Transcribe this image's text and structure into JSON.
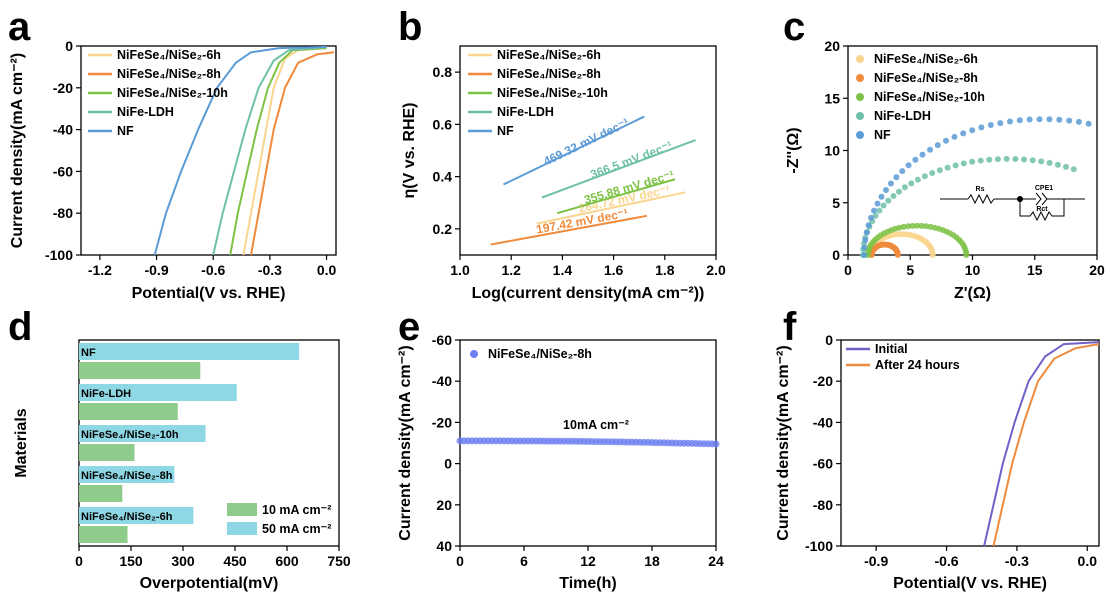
{
  "colors": {
    "6h": "#F9D58E",
    "8h": "#F08A3C",
    "10h": "#7DC244",
    "ldh": "#6FC0A8",
    "nf": "#5B9BD5",
    "initial": "#6E62C8",
    "after": "#F08A3C",
    "bar10": "#8FCB8A",
    "bar50": "#8ED8E6",
    "stab": "#6C7FF0"
  },
  "panels": {
    "a": "a",
    "b": "b",
    "c": "c",
    "d": "d",
    "e": "e",
    "f": "f"
  },
  "chart_data": [
    {
      "panel": "a",
      "type": "line",
      "xlabel": "Potential(V vs. RHE)",
      "ylabel": "Current density(mA cm⁻²)",
      "xlim": [
        -1.3,
        0.05
      ],
      "ylim": [
        -100,
        0
      ],
      "xticks": [
        "-1.2",
        "-0.9",
        "-0.6",
        "-0.3",
        "0.0"
      ],
      "yticks": [
        "0",
        "-20",
        "-40",
        "-60",
        "-80",
        "-100"
      ],
      "legend_position": "top-left",
      "series": [
        {
          "name": "NiFeSe₄/NiSe₂-6h",
          "key": "6h",
          "points": [
            [
              -0.44,
              -100
            ],
            [
              -0.4,
              -80
            ],
            [
              -0.36,
              -60
            ],
            [
              -0.32,
              -40
            ],
            [
              -0.28,
              -20
            ],
            [
              -0.22,
              -6
            ],
            [
              -0.15,
              -2
            ],
            [
              0.0,
              -1
            ]
          ]
        },
        {
          "name": "NiFeSe₄/NiSe₂-8h",
          "key": "8h",
          "points": [
            [
              -0.4,
              -100
            ],
            [
              -0.36,
              -80
            ],
            [
              -0.32,
              -60
            ],
            [
              -0.28,
              -40
            ],
            [
              -0.22,
              -20
            ],
            [
              -0.15,
              -8
            ],
            [
              -0.05,
              -4
            ],
            [
              0.04,
              -3
            ]
          ]
        },
        {
          "name": "NiFeSe₄/NiSe₂-10h",
          "key": "10h",
          "points": [
            [
              -0.51,
              -100
            ],
            [
              -0.47,
              -80
            ],
            [
              -0.42,
              -60
            ],
            [
              -0.37,
              -40
            ],
            [
              -0.31,
              -20
            ],
            [
              -0.25,
              -8
            ],
            [
              -0.18,
              -2
            ],
            [
              0.0,
              -1
            ]
          ]
        },
        {
          "name": "NiFe-LDH",
          "key": "ldh",
          "points": [
            [
              -0.6,
              -100
            ],
            [
              -0.55,
              -80
            ],
            [
              -0.49,
              -60
            ],
            [
              -0.43,
              -40
            ],
            [
              -0.36,
              -20
            ],
            [
              -0.28,
              -7
            ],
            [
              -0.2,
              -2
            ],
            [
              0.0,
              -0.5
            ]
          ]
        },
        {
          "name": "NF",
          "key": "nf",
          "points": [
            [
              -0.91,
              -100
            ],
            [
              -0.85,
              -80
            ],
            [
              -0.77,
              -60
            ],
            [
              -0.68,
              -40
            ],
            [
              -0.58,
              -20
            ],
            [
              -0.48,
              -8
            ],
            [
              -0.4,
              -3
            ],
            [
              -0.25,
              -1
            ],
            [
              0.0,
              -0.5
            ]
          ]
        }
      ]
    },
    {
      "panel": "b",
      "type": "line",
      "xlabel": "Log(current density(mA cm⁻²))",
      "ylabel": "η(V vs. RHE)",
      "xlim": [
        1.0,
        2.0
      ],
      "ylim": [
        0.1,
        0.9
      ],
      "xticks": [
        "1.0",
        "1.2",
        "1.4",
        "1.6",
        "1.8",
        "2.0"
      ],
      "yticks": [
        "0.2",
        "0.4",
        "0.6",
        "0.8"
      ],
      "legend_position": "top-left",
      "series": [
        {
          "name": "NiFeSe₄/NiSe₂-6h",
          "key": "6h",
          "points": [
            [
              1.3,
              0.22
            ],
            [
              1.88,
              0.34
            ]
          ],
          "slope_label": "264.72 mV dec⁻¹"
        },
        {
          "name": "NiFeSe₄/NiSe₂-8h",
          "key": "8h",
          "points": [
            [
              1.12,
              0.14
            ],
            [
              1.73,
              0.25
            ]
          ],
          "slope_label": "197.42 mV dec⁻¹"
        },
        {
          "name": "NiFeSe₄/NiSe₂-10h",
          "key": "10h",
          "points": [
            [
              1.38,
              0.26
            ],
            [
              1.84,
              0.39
            ]
          ],
          "slope_label": "355.88 mV dec⁻¹"
        },
        {
          "name": "NiFe-LDH",
          "key": "ldh",
          "points": [
            [
              1.32,
              0.32
            ],
            [
              1.92,
              0.54
            ]
          ],
          "slope_label": "366.5 mV dec⁻¹"
        },
        {
          "name": "NF",
          "key": "nf",
          "points": [
            [
              1.17,
              0.37
            ],
            [
              1.72,
              0.63
            ]
          ],
          "slope_label": "469.32 mV dec⁻¹"
        }
      ]
    },
    {
      "panel": "c",
      "type": "scatter",
      "xlabel": "Z'(Ω)",
      "ylabel": "-Z''(Ω)",
      "xlim": [
        0,
        20
      ],
      "ylim": [
        0,
        20
      ],
      "xticks": [
        "0",
        "5",
        "10",
        "15",
        "20"
      ],
      "yticks": [
        "0",
        "5",
        "10",
        "15",
        "20"
      ],
      "legend_position": "top-left",
      "circuit_labels": [
        "Rs",
        "CPE1",
        "Rct"
      ],
      "series": [
        {
          "name": "NiFeSe₄/NiSe₂-6h",
          "key": "6h",
          "arc": {
            "start": 1.8,
            "end": 6.8,
            "height": 2.0
          }
        },
        {
          "name": "NiFeSe₄/NiSe₂-8h",
          "key": "8h",
          "arc": {
            "start": 1.9,
            "end": 4.0,
            "height": 1.0
          }
        },
        {
          "name": "NiFeSe₄/NiSe₂-10h",
          "key": "10h",
          "arc": {
            "start": 1.6,
            "end": 9.5,
            "height": 2.8
          }
        },
        {
          "name": "NiFe-LDH",
          "key": "ldh",
          "arc": {
            "start": 1.2,
            "end": 24.5,
            "height": 9.2
          }
        },
        {
          "name": "NF",
          "key": "nf",
          "arc": {
            "start": 1.3,
            "end": 30.0,
            "height": 13.0
          }
        }
      ]
    },
    {
      "panel": "d",
      "type": "bar",
      "orientation": "horizontal",
      "xlabel": "Overpotential(mV)",
      "ylabel": "Materials",
      "xlim": [
        0,
        750
      ],
      "xticks": [
        "0",
        "150",
        "300",
        "450",
        "600",
        "750"
      ],
      "legend_position": "bottom-right",
      "categories": [
        "NF",
        "NiFe-LDH",
        "NiFeSe₄/NiSe₂-10h",
        "NiFeSe₄/NiSe₂-8h",
        "NiFeSe₄/NiSe₂-6h"
      ],
      "series": [
        {
          "name": "10 mA cm⁻²",
          "key": "bar10",
          "values": [
            350,
            285,
            160,
            125,
            140
          ]
        },
        {
          "name": "50 mA cm⁻²",
          "key": "bar50",
          "values": [
            635,
            455,
            365,
            275,
            330
          ]
        }
      ]
    },
    {
      "panel": "e",
      "type": "scatter",
      "xlabel": "Time(h)",
      "ylabel": "Current density(mA cm⁻²)",
      "xlim": [
        0,
        24
      ],
      "ylim": [
        40,
        -60
      ],
      "xticks": [
        "0",
        "6",
        "12",
        "18",
        "24"
      ],
      "yticks": [
        "-60",
        "-40",
        "-20",
        "0",
        "20",
        "40"
      ],
      "legend_position": "top-left",
      "annotation": "10mA cm⁻²",
      "series": [
        {
          "name": "NiFeSe₄/NiSe₂-8h",
          "key": "stab",
          "start": -11.0,
          "end": -9.5
        }
      ]
    },
    {
      "panel": "f",
      "type": "line",
      "xlabel": "Potential(V vs. RHE)",
      "ylabel": "Current density(mA cm⁻²)",
      "xlim": [
        -1.05,
        0.05
      ],
      "ylim": [
        -100,
        0
      ],
      "xticks": [
        "-0.9",
        "-0.6",
        "-0.3",
        "0.0"
      ],
      "yticks": [
        "0",
        "-20",
        "-40",
        "-60",
        "-80",
        "-100"
      ],
      "legend_position": "top-left",
      "series": [
        {
          "name": "Initial",
          "key": "initial",
          "points": [
            [
              -0.44,
              -100
            ],
            [
              -0.4,
              -80
            ],
            [
              -0.36,
              -60
            ],
            [
              -0.31,
              -40
            ],
            [
              -0.25,
              -20
            ],
            [
              -0.18,
              -8
            ],
            [
              -0.1,
              -2
            ],
            [
              0.05,
              -1
            ]
          ]
        },
        {
          "name": "After 24 hours",
          "key": "after",
          "points": [
            [
              -0.4,
              -100
            ],
            [
              -0.36,
              -80
            ],
            [
              -0.32,
              -60
            ],
            [
              -0.27,
              -40
            ],
            [
              -0.21,
              -20
            ],
            [
              -0.14,
              -9
            ],
            [
              -0.05,
              -4
            ],
            [
              0.05,
              -2
            ]
          ]
        }
      ]
    }
  ]
}
